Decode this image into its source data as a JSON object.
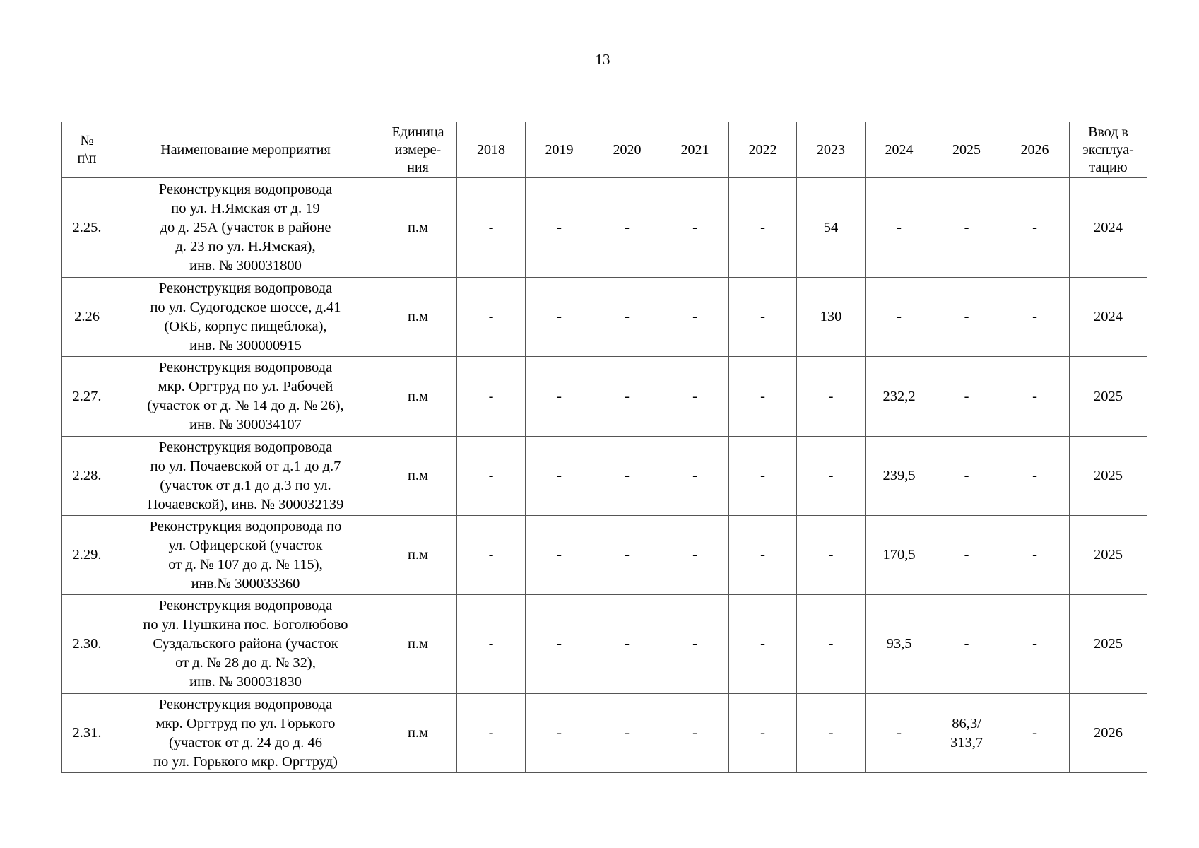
{
  "page_number": "13",
  "table": {
    "headers": [
      "№\nп\\п",
      "Наименование мероприятия",
      "Единица\nизмере-\nния",
      "2018",
      "2019",
      "2020",
      "2021",
      "2022",
      "2023",
      "2024",
      "2025",
      "2026",
      "Ввод в\nэксплуа-\nтацию"
    ],
    "rows": [
      [
        "2.25.",
        "Реконструкция водопровода\nпо ул. Н.Ямская от д. 19\nдо д. 25А (участок в районе\nд.  23 по ул. Н.Ямская),\nинв. № 300031800",
        "п.м",
        "-",
        "-",
        "-",
        "-",
        "-",
        "54",
        "-",
        "-",
        "-",
        "2024"
      ],
      [
        "2.26",
        "Реконструкция водопровода\nпо ул. Судогодское шоссе, д.41\n(ОКБ, корпус пищеблока),\nинв. № 300000915",
        "п.м",
        "-",
        "-",
        "-",
        "-",
        "-",
        "130",
        "-",
        "-",
        "-",
        "2024"
      ],
      [
        "2.27.",
        "Реконструкция водопровода\nмкр. Оргтруд по ул. Рабочей\n(участок от д. № 14 до д. № 26),\nинв. № 300034107",
        "п.м",
        "-",
        "-",
        "-",
        "-",
        "-",
        "-",
        "232,2",
        "-",
        "-",
        "2025"
      ],
      [
        "2.28.",
        "Реконструкция водопровода\nпо ул. Почаевской от д.1 до д.7\n(участок от  д.1 до д.3 по ул.\nПочаевской),  инв. № 300032139",
        "п.м",
        "-",
        "-",
        "-",
        "-",
        "-",
        "-",
        "239,5",
        "-",
        "-",
        "2025"
      ],
      [
        "2.29.",
        "Реконструкция водопровода по\nул. Офицерской (участок\nот д. № 107 до д. № 115),\nинв.№ 300033360",
        "п.м",
        "-",
        "-",
        "-",
        "-",
        "-",
        "-",
        "170,5",
        "-",
        "-",
        "2025"
      ],
      [
        "2.30.",
        "Реконструкция водопровода\nпо ул. Пушкина пос. Боголюбово\nСуздальского района (участок\nот д. № 28 до д. № 32),\nинв. № 300031830",
        "п.м",
        "-",
        "-",
        "-",
        "-",
        "-",
        "-",
        "93,5",
        "-",
        "-",
        "2025"
      ],
      [
        "2.31.",
        "Реконструкция водопровода\nмкр. Оргтруд по ул. Горького\n(участок от д. 24 до д. 46\nпо ул. Горького мкр. Оргтруд)",
        "п.м",
        "-",
        "-",
        "-",
        "-",
        "-",
        "-",
        "-",
        "86,3/\n313,7",
        "-",
        "2026"
      ]
    ]
  }
}
